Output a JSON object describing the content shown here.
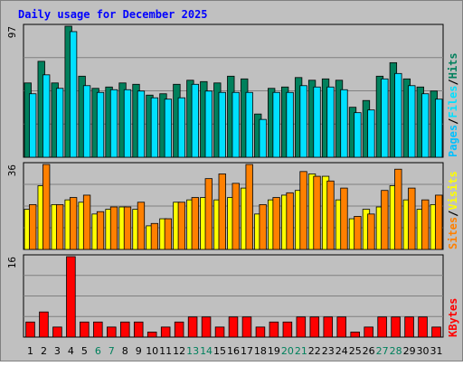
{
  "chart_data": {
    "type": "bar",
    "title": "Daily usage for December 2025",
    "days": [
      "1",
      "2",
      "3",
      "4",
      "5",
      "6",
      "7",
      "8",
      "9",
      "10",
      "11",
      "12",
      "13",
      "14",
      "15",
      "16",
      "17",
      "18",
      "19",
      "20",
      "21",
      "22",
      "23",
      "24",
      "25",
      "26",
      "27",
      "28",
      "29",
      "30",
      "31"
    ],
    "weekend_days": [
      "6",
      "7",
      "13",
      "14",
      "20",
      "21",
      "27",
      "28"
    ],
    "panels": [
      {
        "name": "hits-files-pages",
        "max_label": "97",
        "ylim": [
          0,
          97
        ],
        "series": [
          {
            "name": "Hits",
            "color": "#00805c",
            "values": [
              55,
              71,
              55,
              97,
              60,
              51,
              52,
              55,
              54,
              46,
              47,
              54,
              57,
              56,
              55,
              60,
              58,
              32,
              51,
              52,
              59,
              57,
              58,
              57,
              37,
              42,
              60,
              70,
              58,
              52,
              49
            ]
          },
          {
            "name": "Files",
            "color": "#00e0ff",
            "values": [
              47,
              61,
              51,
              93,
              53,
              48,
              50,
              50,
              49,
              44,
              43,
              44,
              54,
              49,
              48,
              48,
              48,
              28,
              48,
              48,
              53,
              52,
              52,
              50,
              33,
              35,
              58,
              62,
              53,
              47,
              43
            ]
          },
          {
            "name": "Pages",
            "color": "#00c0ff",
            "values": [
              0,
              0,
              0,
              0,
              0,
              0,
              0,
              0,
              0,
              0,
              0,
              0,
              0,
              0,
              0,
              0,
              0,
              0,
              0,
              0,
              0,
              0,
              0,
              0,
              0,
              0,
              0,
              0,
              0,
              0,
              0
            ]
          }
        ],
        "legend": [
          "Pages",
          "Files",
          "Hits"
        ]
      },
      {
        "name": "visits-sites",
        "max_label": "36",
        "ylim": [
          0,
          36
        ],
        "series": [
          {
            "name": "Visits",
            "color": "#ffff00",
            "values": [
              17,
              27,
              19,
              21,
              20,
              15,
              17,
              18,
              17,
              10,
              13,
              20,
              21,
              22,
              21,
              22,
              26,
              15,
              21,
              23,
              25,
              32,
              31,
              21,
              13,
              17,
              18,
              27,
              21,
              17,
              19
            ]
          },
          {
            "name": "Sites",
            "color": "#ff8000",
            "values": [
              19,
              36,
              19,
              22,
              23,
              16,
              18,
              18,
              20,
              11,
              13,
              20,
              22,
              30,
              32,
              28,
              36,
              19,
              22,
              24,
              33,
              31,
              29,
              26,
              14,
              15,
              25,
              34,
              26,
              21,
              23
            ]
          }
        ],
        "legend": [
          "Sites",
          "Visits"
        ]
      },
      {
        "name": "kbytes",
        "max_label": "16",
        "ylim": [
          0,
          16
        ],
        "series": [
          {
            "name": "KBytes",
            "color": "#ff0000",
            "values": [
              3,
              5,
              2,
              16,
              3,
              3,
              2,
              3,
              3,
              1,
              2,
              3,
              4,
              4,
              2,
              4,
              4,
              2,
              3,
              3,
              4,
              4,
              4,
              4,
              1,
              2,
              4,
              4,
              4,
              4,
              2
            ]
          }
        ],
        "legend": [
          "KBytes"
        ]
      }
    ]
  },
  "colors": {
    "background": "#c0c0c0",
    "frame": "#808080",
    "title": "#0000ff",
    "grid": "#808080",
    "tick_weekday": "#000000",
    "tick_weekend": "#00805c",
    "side_slash": "#000000"
  }
}
